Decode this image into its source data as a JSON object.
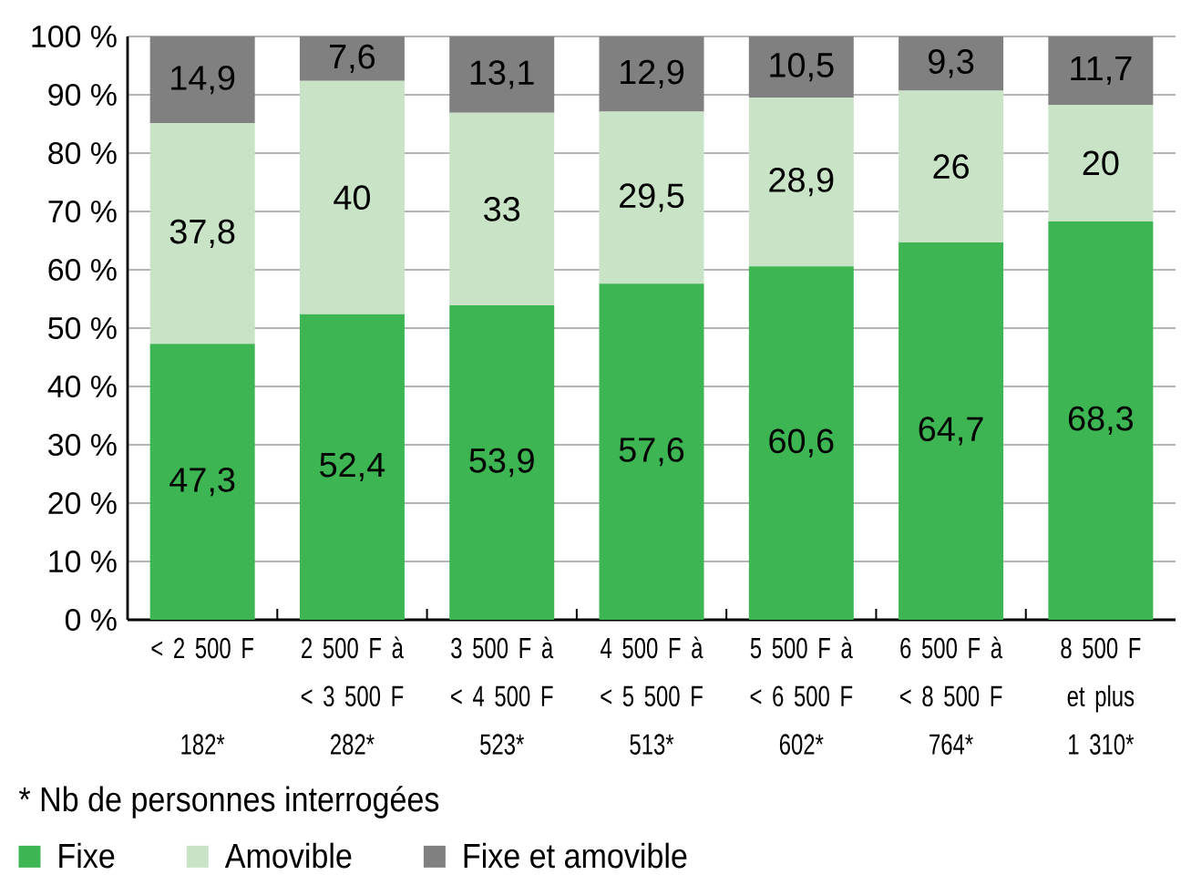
{
  "chart_data": {
    "type": "bar",
    "stacked": true,
    "categories": [
      "< 2 500 F\n\n182*",
      "2 500 F à\n< 3 500 F\n282*",
      "3 500 F à\n< 4 500 F\n523*",
      "4 500 F à\n< 5 500 F\n513*",
      "5 500 F à\n< 6 500 F\n602*",
      "6 500 F à\n< 8 500 F\n764*",
      "8 500 F\net plus\n1 310*"
    ],
    "series": [
      {
        "name": "Fixe",
        "color": "#3db553",
        "values": [
          47.3,
          52.4,
          53.9,
          57.6,
          60.6,
          64.7,
          68.3
        ],
        "value_labels": [
          "47,3",
          "52,4",
          "53,9",
          "57,6",
          "60,6",
          "64,7",
          "68,3"
        ]
      },
      {
        "name": "Amovible",
        "color": "#c8e3c6",
        "values": [
          37.8,
          40,
          33,
          29.5,
          28.9,
          26,
          20
        ],
        "value_labels": [
          "37,8",
          "40",
          "33",
          "29,5",
          "28,9",
          "26",
          "20"
        ]
      },
      {
        "name": "Fixe et amovible",
        "color": "#808080",
        "values": [
          14.9,
          7.6,
          13.1,
          12.9,
          10.5,
          9.3,
          11.7
        ],
        "value_labels": [
          "14,9",
          "7,6",
          "13,1",
          "12,9",
          "10,5",
          "9,3",
          "11,7"
        ]
      }
    ],
    "ylim": [
      0,
      100
    ],
    "yticks": [
      {
        "value": 0,
        "label": "0 %"
      },
      {
        "value": 10,
        "label": "10 %"
      },
      {
        "value": 20,
        "label": "20 %"
      },
      {
        "value": 30,
        "label": "30 %"
      },
      {
        "value": 40,
        "label": "40 %"
      },
      {
        "value": 50,
        "label": "50 %"
      },
      {
        "value": 60,
        "label": "60 %"
      },
      {
        "value": 70,
        "label": "70 %"
      },
      {
        "value": 80,
        "label": "80 %"
      },
      {
        "value": 90,
        "label": "90 %"
      },
      {
        "value": 100,
        "label": "100 %"
      }
    ],
    "grid": "y",
    "legend": "bottom",
    "annotations": [
      "* Nb de personnes interrogées"
    ]
  }
}
